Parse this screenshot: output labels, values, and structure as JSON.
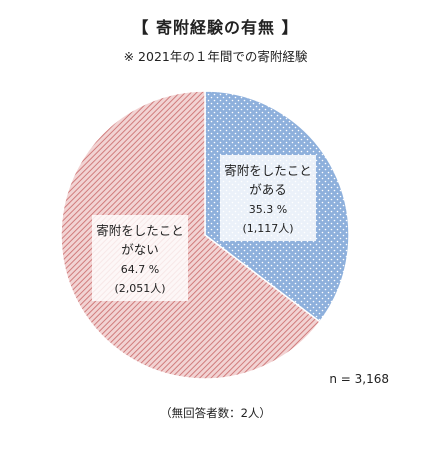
{
  "chart_data": {
    "type": "pie",
    "title": "【 寄附経験の有無 】",
    "subtitle": "※ 2021年の１年間での寄附経験",
    "slices": [
      {
        "label_lines": [
          "寄附をしたこと",
          "がある"
        ],
        "percent_text": "35.3 %",
        "count_text": "(1,117人)",
        "value": 35.3,
        "count": 1117,
        "color": "#8eb0dc",
        "pattern": "dots"
      },
      {
        "label_lines": [
          "寄附をしたこと",
          "がない"
        ],
        "percent_text": "64.7 %",
        "count_text": "(2,051人)",
        "value": 64.7,
        "count": 2051,
        "color": "#d98a8a",
        "pattern": "diagonal-hatch"
      }
    ],
    "n_text": "n = 3,168",
    "footnote": "（無回答者数：2人）"
  }
}
